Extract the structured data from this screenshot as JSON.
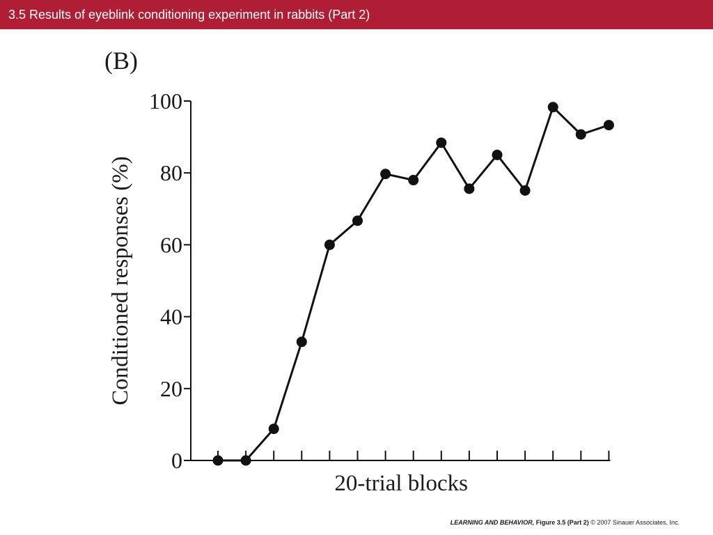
{
  "header": {
    "title": "3.5  Results of eyeblink conditioning experiment in rabbits (Part 2)",
    "background_color": "#b01e35",
    "text_color": "#ffffff"
  },
  "footer": {
    "book": "LEARNING AND BEHAVIOR,",
    "figure": "Figure 3.5 (Part 2)",
    "copyright": "© 2007 Sinauer Associates, Inc."
  },
  "chart_data": {
    "type": "line",
    "panel_label": "(B)",
    "xlabel": "20-trial blocks",
    "ylabel": "Conditioned responses (%)",
    "ylim": [
      0,
      100
    ],
    "yticks": [
      0,
      20,
      40,
      60,
      80,
      100
    ],
    "x": [
      1,
      2,
      3,
      4,
      5,
      6,
      7,
      8,
      9,
      10,
      11,
      12,
      13,
      14,
      15
    ],
    "values": [
      0,
      0,
      8.8,
      33,
      60,
      66.7,
      79.7,
      78,
      88.4,
      75.6,
      85,
      75.1,
      98.3,
      90.7,
      93.3
    ],
    "marker": "filled-circle",
    "color": "#111111"
  }
}
